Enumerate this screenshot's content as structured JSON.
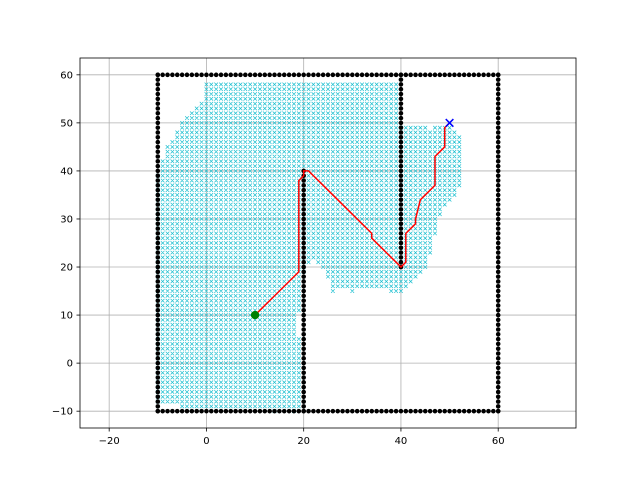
{
  "chart_data": {
    "type": "scatter",
    "title": "",
    "xlabel": "",
    "ylabel": "",
    "xlim": [
      -26,
      76
    ],
    "ylim": [
      -13.5,
      63.5
    ],
    "xticks": [
      -20,
      0,
      20,
      40,
      60
    ],
    "yticks": [
      -10,
      0,
      10,
      20,
      30,
      40,
      50,
      60
    ],
    "grid": true,
    "colors": {
      "explored": "#17becf",
      "obstacle": "#000000",
      "path": "#ff0000",
      "start": "#008000",
      "goal": "#0000ff"
    },
    "obstacles": {
      "spacing": 1,
      "segments": [
        {
          "from": [
            -10,
            -10
          ],
          "to": [
            60,
            -10
          ]
        },
        {
          "from": [
            60,
            -10
          ],
          "to": [
            60,
            60
          ]
        },
        {
          "from": [
            60,
            60
          ],
          "to": [
            -10,
            60
          ]
        },
        {
          "from": [
            -10,
            60
          ],
          "to": [
            -10,
            -10
          ]
        },
        {
          "from": [
            20,
            -10
          ],
          "to": [
            20,
            40
          ]
        },
        {
          "from": [
            40,
            20
          ],
          "to": [
            40,
            60
          ]
        }
      ]
    },
    "explored_region": {
      "marker": "x",
      "spacing": 1,
      "x_outline": [
        -10,
        -10,
        -8,
        -5,
        -3,
        0,
        0,
        40,
        40,
        46,
        48,
        50,
        52,
        53,
        53,
        51,
        48,
        47,
        46,
        46,
        44,
        40,
        38,
        35,
        34,
        33,
        30,
        28,
        26,
        24,
        22,
        20,
        20,
        19,
        19,
        20,
        20,
        18,
        16,
        14,
        13,
        -5,
        -8,
        -10
      ],
      "y_outline": [
        -8,
        39,
        45,
        50,
        52,
        55,
        59,
        59,
        50,
        49,
        50,
        50,
        48,
        45,
        38,
        34,
        31,
        26,
        22,
        21,
        18,
        15,
        15,
        16,
        15,
        16,
        15,
        16,
        15,
        20,
        22,
        18,
        12,
        10,
        6,
        -1,
        -9,
        -10,
        -9,
        -10,
        -9,
        -9,
        -8,
        -8
      ]
    },
    "path": {
      "x": [
        10,
        12,
        14,
        16,
        18,
        19,
        19,
        19,
        19,
        20,
        20,
        21,
        22,
        24,
        26,
        28,
        30,
        32,
        34,
        34,
        36,
        38,
        39,
        40,
        40,
        41,
        41,
        42,
        43,
        43,
        44,
        45,
        46,
        47,
        47,
        47,
        48,
        49,
        49,
        50
      ],
      "y": [
        10,
        12,
        14,
        16,
        18,
        19,
        25,
        30,
        38,
        39,
        40,
        40,
        39,
        37,
        35,
        33,
        31,
        29,
        27,
        26,
        24,
        22,
        21,
        20,
        20,
        21,
        27,
        28,
        29,
        30,
        34,
        35,
        36,
        37,
        38,
        43,
        44,
        45,
        49,
        50
      ]
    },
    "start": {
      "x": 10,
      "y": 10
    },
    "goal": {
      "x": 50,
      "y": 50
    }
  }
}
